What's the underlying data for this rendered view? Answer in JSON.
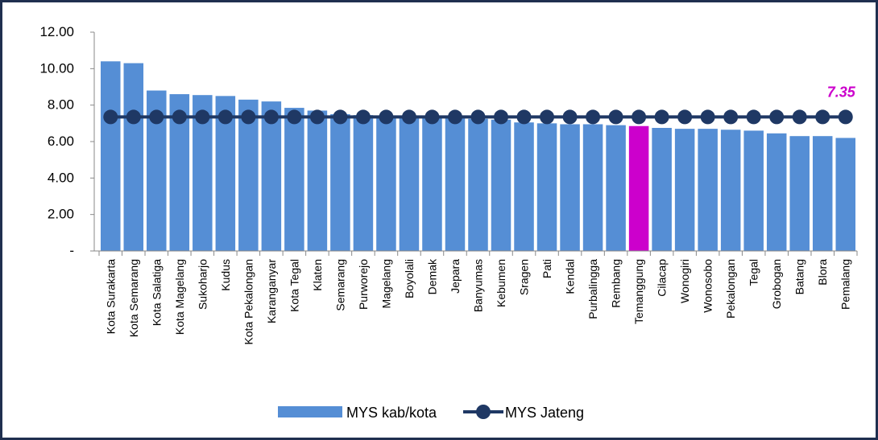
{
  "chart_data": {
    "type": "bar_line",
    "categories": [
      "Kota Surakarta",
      "Kota Semarang",
      "Kota Salatiga",
      "Kota Magelang",
      "Sukoharjo",
      "Kudus",
      "Kota Pekalongan",
      "Karanganyar",
      "Kota Tegal",
      "Klaten",
      "Semarang",
      "Purworejo",
      "Magelang",
      "Boyolali",
      "Demak",
      "Jepara",
      "Banyumas",
      "Kebumen",
      "Sragen",
      "Pati",
      "Kendal",
      "Purbalingga",
      "Rembang",
      "Temanggung",
      "Cilacap",
      "Wonogiri",
      "Wonosobo",
      "Pekalongan",
      "Tegal",
      "Grobogan",
      "Batang",
      "Blora",
      "Pemalang"
    ],
    "series": [
      {
        "name": "MYS kab/kota",
        "type": "bar",
        "color": "#558ed5",
        "point_colors": [
          "#558ed5",
          "#558ed5",
          "#558ed5",
          "#558ed5",
          "#558ed5",
          "#558ed5",
          "#558ed5",
          "#558ed5",
          "#558ed5",
          "#558ed5",
          "#558ed5",
          "#558ed5",
          "#558ed5",
          "#558ed5",
          "#558ed5",
          "#558ed5",
          "#558ed5",
          "#558ed5",
          "#558ed5",
          "#558ed5",
          "#558ed5",
          "#558ed5",
          "#558ed5",
          "#cc00cc",
          "#558ed5",
          "#558ed5",
          "#558ed5",
          "#558ed5",
          "#558ed5",
          "#558ed5",
          "#558ed5",
          "#558ed5",
          "#558ed5"
        ],
        "values": [
          10.4,
          10.3,
          8.8,
          8.6,
          8.55,
          8.5,
          8.3,
          8.2,
          7.85,
          7.7,
          7.5,
          7.45,
          7.4,
          7.35,
          7.3,
          7.3,
          7.25,
          7.2,
          7.05,
          7.0,
          6.95,
          6.95,
          6.9,
          6.85,
          6.75,
          6.7,
          6.7,
          6.65,
          6.6,
          6.45,
          6.3,
          6.3,
          6.2
        ]
      },
      {
        "name": "MYS Jateng",
        "type": "line",
        "color": "#1f3864",
        "values": [
          7.35,
          7.35,
          7.35,
          7.35,
          7.35,
          7.35,
          7.35,
          7.35,
          7.35,
          7.35,
          7.35,
          7.35,
          7.35,
          7.35,
          7.35,
          7.35,
          7.35,
          7.35,
          7.35,
          7.35,
          7.35,
          7.35,
          7.35,
          7.35,
          7.35,
          7.35,
          7.35,
          7.35,
          7.35,
          7.35,
          7.35,
          7.35,
          7.35
        ]
      }
    ],
    "ylim": [
      0,
      12
    ],
    "yticks": [
      {
        "value": 0,
        "label": "-"
      },
      {
        "value": 2,
        "label": "2.00"
      },
      {
        "value": 4,
        "label": "4.00"
      },
      {
        "value": 6,
        "label": "6.00"
      },
      {
        "value": 8,
        "label": "8.00"
      },
      {
        "value": 10,
        "label": "10.00"
      },
      {
        "value": 12,
        "label": "12.00"
      }
    ],
    "legend": "bottom"
  }
}
